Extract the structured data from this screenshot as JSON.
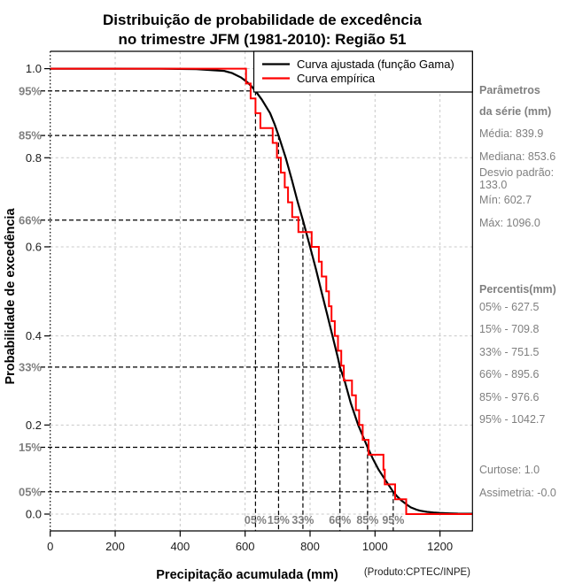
{
  "title": {
    "line1": "Distribuição de probabilidade de excedência",
    "line2": "no trimestre JFM (1981-2010): Região 51"
  },
  "legend": {
    "fitted_label": "Curva ajustada (função Gama)",
    "empirical_label": "Curva empírica"
  },
  "axes": {
    "xlabel": "Precipitação acumulada (mm)",
    "ylabel": "Probabilidade de excedência",
    "producer": "(Produto:CPTEC/INPE)"
  },
  "sidebar": {
    "header1": "Parâmetros",
    "header2": "da série (mm)",
    "media": "Média: 839.9",
    "mediana": "Mediana: 853.6",
    "desvio": "Desvio padrão: 133.0",
    "min": "Mín: 602.7",
    "max": "Máx: 1096.0",
    "percentis_header": "Percentis(mm)",
    "percentis": [
      "05% - 627.5",
      "15% - 709.8",
      "33% - 751.5",
      "66% - 895.6",
      "85% - 976.6",
      "95% - 1042.7"
    ],
    "curtose": "Curtose: 1.0",
    "assimetria": "Assimetria: -0.0"
  },
  "chart_data": {
    "type": "line",
    "title": "Distribuição de probabilidade de excedência no trimestre JFM (1981-2010): Região 51",
    "xlabel": "Precipitação acumulada (mm)",
    "ylabel": "Probabilidade de excedência",
    "xlim": [
      0,
      1300
    ],
    "ylim": [
      0,
      1
    ],
    "grid": true,
    "legend_position": "top-right",
    "x_ticks": [
      {
        "v": 0,
        "label": "0"
      },
      {
        "v": 200,
        "label": "200"
      },
      {
        "v": 400,
        "label": "400"
      },
      {
        "v": 600,
        "label": "600"
      },
      {
        "v": 800,
        "label": "800"
      },
      {
        "v": 1000,
        "label": "1000"
      },
      {
        "v": 1200,
        "label": "1200"
      }
    ],
    "y_ticks": [
      {
        "v": 0.0,
        "label": "0.0"
      },
      {
        "v": 0.2,
        "label": "0.2"
      },
      {
        "v": 0.4,
        "label": "0.4"
      },
      {
        "v": 0.6,
        "label": "0.6"
      },
      {
        "v": 0.8,
        "label": "0.8"
      },
      {
        "v": 1.0,
        "label": "1.0"
      }
    ],
    "percent_refs": [
      {
        "level": 0.95,
        "axis_label": "95%",
        "bottom_label": "05%",
        "value_mm": 627.5
      },
      {
        "level": 0.85,
        "axis_label": "85%",
        "bottom_label": "15%",
        "value_mm": 709.8
      },
      {
        "level": 0.66,
        "axis_label": "66%",
        "bottom_label": "33%",
        "value_mm": 751.5
      },
      {
        "level": 0.33,
        "axis_label": "33%",
        "bottom_label": "66%",
        "value_mm": 895.6
      },
      {
        "level": 0.15,
        "axis_label": "15%",
        "bottom_label": "85%",
        "value_mm": 976.6
      },
      {
        "level": 0.05,
        "axis_label": "05%",
        "bottom_label": "95%",
        "value_mm": 1042.7
      }
    ],
    "series": [
      {
        "name": "Curva ajustada (função Gama)",
        "color": "#000000",
        "style": "smooth",
        "quantiles_exceedance_mm": [
          [
            0.9999,
            340
          ],
          [
            0.999,
            450
          ],
          [
            0.995,
            535
          ],
          [
            0.99,
            560
          ],
          [
            0.98,
            588
          ],
          [
            0.97,
            606
          ],
          [
            0.96,
            620
          ],
          [
            0.95,
            632
          ],
          [
            0.93,
            652
          ],
          [
            0.9,
            677
          ],
          [
            0.875,
            691
          ],
          [
            0.85,
            703
          ],
          [
            0.8,
            725
          ],
          [
            0.75,
            744
          ],
          [
            0.7,
            762
          ],
          [
            0.66,
            778
          ],
          [
            0.6,
            800
          ],
          [
            0.55,
            818
          ],
          [
            0.5,
            835
          ],
          [
            0.45,
            852
          ],
          [
            0.4,
            869
          ],
          [
            0.35,
            886
          ],
          [
            0.33,
            892
          ],
          [
            0.3,
            906
          ],
          [
            0.25,
            925
          ],
          [
            0.2,
            948
          ],
          [
            0.15,
            977
          ],
          [
            0.125,
            993
          ],
          [
            0.1,
            1011
          ],
          [
            0.075,
            1033
          ],
          [
            0.05,
            1056
          ],
          [
            0.04,
            1068
          ],
          [
            0.03,
            1082
          ],
          [
            0.02,
            1100
          ],
          [
            0.015,
            1110
          ],
          [
            0.01,
            1128
          ],
          [
            0.0075,
            1139
          ],
          [
            0.005,
            1160
          ],
          [
            0.0035,
            1180
          ],
          [
            0.0025,
            1200
          ],
          [
            0.0015,
            1230
          ],
          [
            0.001,
            1255
          ],
          [
            0.0007,
            1299
          ]
        ]
      },
      {
        "name": "Curva empírica",
        "color": "#ff0000",
        "style": "step",
        "n": 30,
        "sorted_values_mm": [
          602.7,
          617,
          632,
          647,
          685,
          698,
          710,
          722,
          732,
          745,
          764,
          805,
          827,
          836,
          850,
          858,
          866,
          876,
          886,
          896,
          904,
          929,
          941,
          951,
          962,
          980,
          1026,
          1030,
          1062,
          1096
        ]
      }
    ],
    "colors": {
      "fitted": "#000000",
      "empirical": "#ff0000",
      "grid": "#c8c8c8",
      "reference": "#000000",
      "gray_text": "#7f7f7f",
      "axis_text": "#1c1c1c"
    },
    "parameters": {
      "media": 839.9,
      "mediana": 853.6,
      "desvio_padrao": 133.0,
      "min": 602.7,
      "max": 1096.0,
      "curtose": 1.0,
      "assimetria": -0.0,
      "percentis_mm": {
        "05": 627.5,
        "15": 709.8,
        "33": 751.5,
        "66": 895.6,
        "85": 976.6,
        "95": 1042.7
      }
    }
  }
}
